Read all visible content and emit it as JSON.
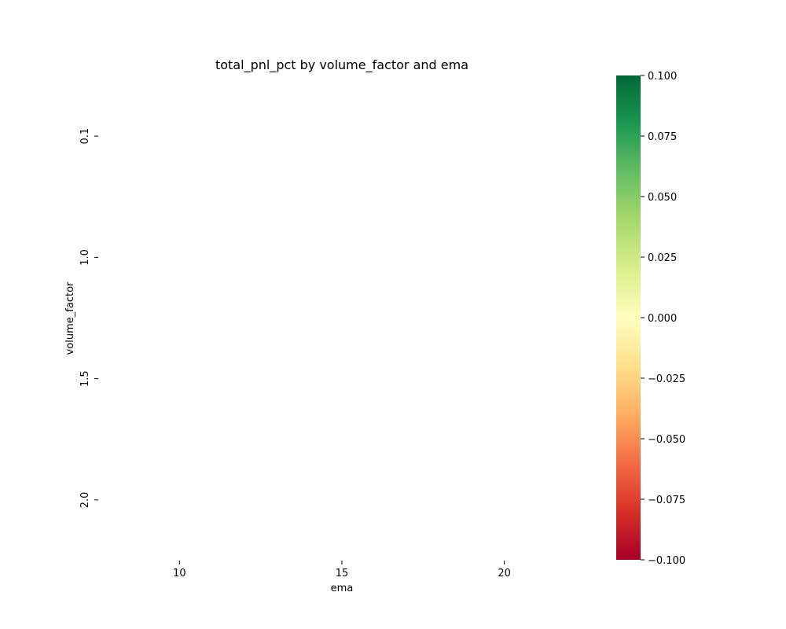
{
  "chart_data": {
    "type": "heatmap",
    "title": "total_pnl_pct by volume_factor and ema",
    "xlabel": "ema",
    "ylabel": "volume_factor",
    "x_categories": [
      "10",
      "15",
      "20"
    ],
    "y_categories": [
      "0.1",
      "1.0",
      "1.5",
      "2.0"
    ],
    "values": [
      [
        null,
        null,
        null
      ],
      [
        null,
        null,
        null
      ],
      [
        null,
        null,
        null
      ],
      [
        null,
        null,
        null
      ]
    ],
    "colormap": "RdYlGn",
    "colorbar": {
      "vmin": -0.1,
      "vmax": 0.1,
      "ticks": [
        "0.100",
        "0.075",
        "0.050",
        "0.025",
        "0.000",
        "−0.025",
        "−0.050",
        "−0.075",
        "−0.100"
      ],
      "colors": [
        "#006837",
        "#1a9850",
        "#66bd63",
        "#a6d96a",
        "#d9ef8b",
        "#ffffbf",
        "#fee08b",
        "#fdae61",
        "#f46d43",
        "#d73027",
        "#a50026"
      ]
    },
    "grid": false
  }
}
